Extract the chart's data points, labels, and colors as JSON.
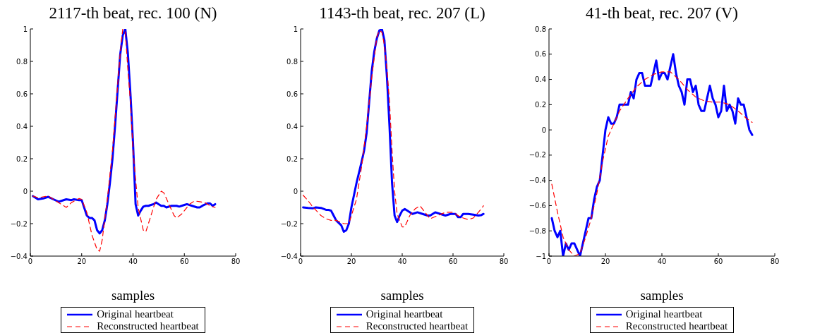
{
  "chart_data": [
    {
      "type": "line",
      "title": "2117-th beat, rec. 100 (N)",
      "xlabel": "samples",
      "xlim": [
        0,
        80
      ],
      "xticks": [
        0,
        20,
        40,
        60,
        80
      ],
      "ylim": [
        -0.4,
        1
      ],
      "yticks": [
        -0.4,
        -0.2,
        0,
        0.2,
        0.4,
        0.6,
        0.8,
        1
      ],
      "legend": "bottom",
      "marker": "none",
      "series": [
        {
          "name": "Original heartbeat",
          "color": "#0000ff",
          "line_style": "solid",
          "x": [
            1,
            3,
            5,
            7,
            9,
            11,
            14,
            16,
            17,
            19,
            20,
            22,
            23,
            24,
            25,
            26,
            27,
            28,
            29,
            30,
            31,
            32,
            33,
            34,
            35,
            36,
            37,
            38,
            39,
            40,
            41,
            42,
            43,
            44,
            45,
            46,
            47,
            48,
            49,
            50,
            51,
            52,
            53,
            55,
            57,
            58,
            60,
            61,
            63,
            65,
            66,
            67,
            69,
            70,
            71,
            72
          ],
          "values": [
            -0.03,
            -0.05,
            -0.045,
            -0.035,
            -0.05,
            -0.065,
            -0.05,
            -0.055,
            -0.05,
            -0.055,
            -0.055,
            -0.15,
            -0.165,
            -0.165,
            -0.18,
            -0.24,
            -0.26,
            -0.24,
            -0.18,
            -0.08,
            0.05,
            0.2,
            0.4,
            0.62,
            0.84,
            0.96,
            1.0,
            0.85,
            0.6,
            0.3,
            -0.08,
            -0.15,
            -0.12,
            -0.095,
            -0.09,
            -0.09,
            -0.085,
            -0.08,
            -0.07,
            -0.08,
            -0.09,
            -0.09,
            -0.1,
            -0.09,
            -0.09,
            -0.095,
            -0.085,
            -0.08,
            -0.09,
            -0.1,
            -0.1,
            -0.09,
            -0.075,
            -0.075,
            -0.09,
            -0.08
          ]
        },
        {
          "name": "Reconstructed heartbeat",
          "color": "#ff0000",
          "line_style": "dashed",
          "x": [
            1,
            3,
            7,
            10,
            12,
            14,
            16,
            19,
            20,
            22,
            24,
            26,
            27,
            28,
            29,
            30,
            32,
            34,
            35,
            36,
            37,
            38,
            39,
            40,
            42,
            44,
            45,
            47,
            49,
            51,
            52,
            54,
            56,
            57,
            59,
            62,
            64,
            66,
            68,
            70,
            72
          ],
          "values": [
            -0.03,
            -0.04,
            -0.03,
            -0.06,
            -0.08,
            -0.1,
            -0.07,
            -0.045,
            -0.05,
            -0.13,
            -0.27,
            -0.36,
            -0.37,
            -0.3,
            -0.17,
            -0.05,
            0.25,
            0.65,
            0.85,
            1.0,
            0.98,
            0.75,
            0.55,
            0.25,
            -0.1,
            -0.24,
            -0.25,
            -0.15,
            -0.05,
            0.0,
            -0.01,
            -0.08,
            -0.15,
            -0.165,
            -0.14,
            -0.08,
            -0.06,
            -0.065,
            -0.07,
            -0.09,
            -0.1
          ]
        }
      ]
    },
    {
      "type": "line",
      "title": "1143-th beat, rec. 207 (L)",
      "xlabel": "samples",
      "xlim": [
        0,
        80
      ],
      "xticks": [
        0,
        20,
        40,
        60,
        80
      ],
      "ylim": [
        -0.4,
        1
      ],
      "yticks": [
        -0.4,
        -0.2,
        0,
        0.2,
        0.4,
        0.6,
        0.8,
        1
      ],
      "legend": "bottom",
      "marker": "none",
      "series": [
        {
          "name": "Original heartbeat",
          "color": "#0000ff",
          "line_style": "solid",
          "x": [
            1,
            3,
            5,
            6,
            8,
            10,
            11,
            12,
            13,
            14,
            15,
            16,
            17,
            18,
            19,
            20,
            22,
            24,
            25,
            26,
            27,
            28,
            29,
            30,
            31,
            32,
            33,
            34,
            35,
            36,
            37,
            38,
            39,
            40,
            41,
            42,
            44,
            46,
            48,
            50,
            51,
            53,
            55,
            57,
            59,
            61,
            62,
            63,
            64,
            66,
            68,
            70,
            71,
            72
          ],
          "values": [
            -0.1,
            -0.103,
            -0.105,
            -0.1,
            -0.103,
            -0.115,
            -0.115,
            -0.12,
            -0.15,
            -0.18,
            -0.195,
            -0.21,
            -0.25,
            -0.24,
            -0.2,
            -0.1,
            0.05,
            0.18,
            0.25,
            0.36,
            0.55,
            0.74,
            0.86,
            0.94,
            0.99,
            1.0,
            0.93,
            0.7,
            0.4,
            0.05,
            -0.15,
            -0.19,
            -0.15,
            -0.12,
            -0.11,
            -0.12,
            -0.14,
            -0.13,
            -0.14,
            -0.15,
            -0.15,
            -0.13,
            -0.14,
            -0.15,
            -0.14,
            -0.14,
            -0.16,
            -0.16,
            -0.14,
            -0.14,
            -0.145,
            -0.15,
            -0.148,
            -0.14
          ]
        },
        {
          "name": "Reconstructed heartbeat",
          "color": "#ff0000",
          "line_style": "dashed",
          "x": [
            1,
            3,
            5,
            8,
            10,
            12,
            14,
            17,
            19,
            20,
            22,
            24,
            26,
            28,
            30,
            31,
            32,
            33,
            34,
            35,
            36,
            37,
            38,
            40,
            41,
            43,
            45,
            47,
            49,
            51,
            54,
            57,
            60,
            63,
            66,
            68,
            70,
            72
          ],
          "values": [
            -0.025,
            -0.06,
            -0.1,
            -0.15,
            -0.17,
            -0.18,
            -0.18,
            -0.2,
            -0.2,
            -0.15,
            -0.05,
            0.15,
            0.4,
            0.7,
            0.95,
            0.99,
            0.98,
            0.9,
            0.75,
            0.55,
            0.25,
            0.0,
            -0.14,
            -0.22,
            -0.22,
            -0.15,
            -0.11,
            -0.09,
            -0.13,
            -0.17,
            -0.15,
            -0.13,
            -0.13,
            -0.16,
            -0.175,
            -0.165,
            -0.13,
            -0.09
          ]
        }
      ]
    },
    {
      "type": "line",
      "title": "41-th beat, rec. 207 (V)",
      "xlabel": "samples",
      "xlim": [
        0,
        80
      ],
      "xticks": [
        0,
        20,
        40,
        60,
        80
      ],
      "ylim": [
        -1,
        0.8
      ],
      "yticks": [
        -1,
        -0.8,
        -0.6,
        -0.4,
        -0.2,
        0,
        0.2,
        0.4,
        0.6,
        0.8
      ],
      "legend": "bottom",
      "marker": "none",
      "series": [
        {
          "name": "Original heartbeat",
          "color": "#0000ff",
          "line_style": "solid",
          "x": [
            1,
            2,
            3,
            4,
            5,
            6,
            7,
            8,
            9,
            10,
            11,
            12,
            13,
            14,
            15,
            16,
            17,
            18,
            19,
            20,
            21,
            22,
            23,
            24,
            25,
            26,
            27,
            28,
            29,
            30,
            31,
            32,
            33,
            34,
            35,
            36,
            37,
            38,
            39,
            40,
            41,
            42,
            43,
            44,
            45,
            46,
            47,
            48,
            49,
            50,
            51,
            52,
            53,
            54,
            55,
            56,
            57,
            58,
            59,
            60,
            61,
            62,
            63,
            64,
            65,
            66,
            67,
            68,
            69,
            70,
            71,
            72
          ],
          "values": [
            -0.7,
            -0.8,
            -0.85,
            -0.8,
            -1.0,
            -0.9,
            -0.95,
            -0.9,
            -0.9,
            -0.95,
            -1.0,
            -0.9,
            -0.8,
            -0.7,
            -0.7,
            -0.55,
            -0.45,
            -0.4,
            -0.2,
            0.0,
            0.1,
            0.05,
            0.05,
            0.1,
            0.2,
            0.2,
            0.2,
            0.2,
            0.3,
            0.25,
            0.4,
            0.45,
            0.45,
            0.35,
            0.35,
            0.35,
            0.45,
            0.55,
            0.4,
            0.45,
            0.45,
            0.4,
            0.5,
            0.6,
            0.45,
            0.35,
            0.3,
            0.2,
            0.4,
            0.4,
            0.3,
            0.35,
            0.2,
            0.15,
            0.15,
            0.25,
            0.35,
            0.25,
            0.2,
            0.1,
            0.15,
            0.35,
            0.15,
            0.2,
            0.15,
            0.05,
            0.25,
            0.2,
            0.2,
            0.1,
            0.0,
            -0.04
          ]
        },
        {
          "name": "Reconstructed heartbeat",
          "color": "#ff0000",
          "line_style": "dashed",
          "x": [
            1,
            3,
            5,
            7,
            9,
            11,
            13,
            15,
            17,
            19,
            21,
            23,
            25,
            28,
            31,
            34,
            37,
            40,
            43,
            46,
            49,
            52,
            55,
            58,
            61,
            64,
            67,
            70,
            72
          ],
          "values": [
            -0.43,
            -0.65,
            -0.85,
            -0.95,
            -1.0,
            -0.98,
            -0.85,
            -0.7,
            -0.5,
            -0.25,
            -0.05,
            0.05,
            0.15,
            0.25,
            0.34,
            0.4,
            0.44,
            0.46,
            0.46,
            0.4,
            0.32,
            0.26,
            0.23,
            0.22,
            0.22,
            0.2,
            0.15,
            0.09,
            0.06
          ]
        }
      ]
    }
  ]
}
